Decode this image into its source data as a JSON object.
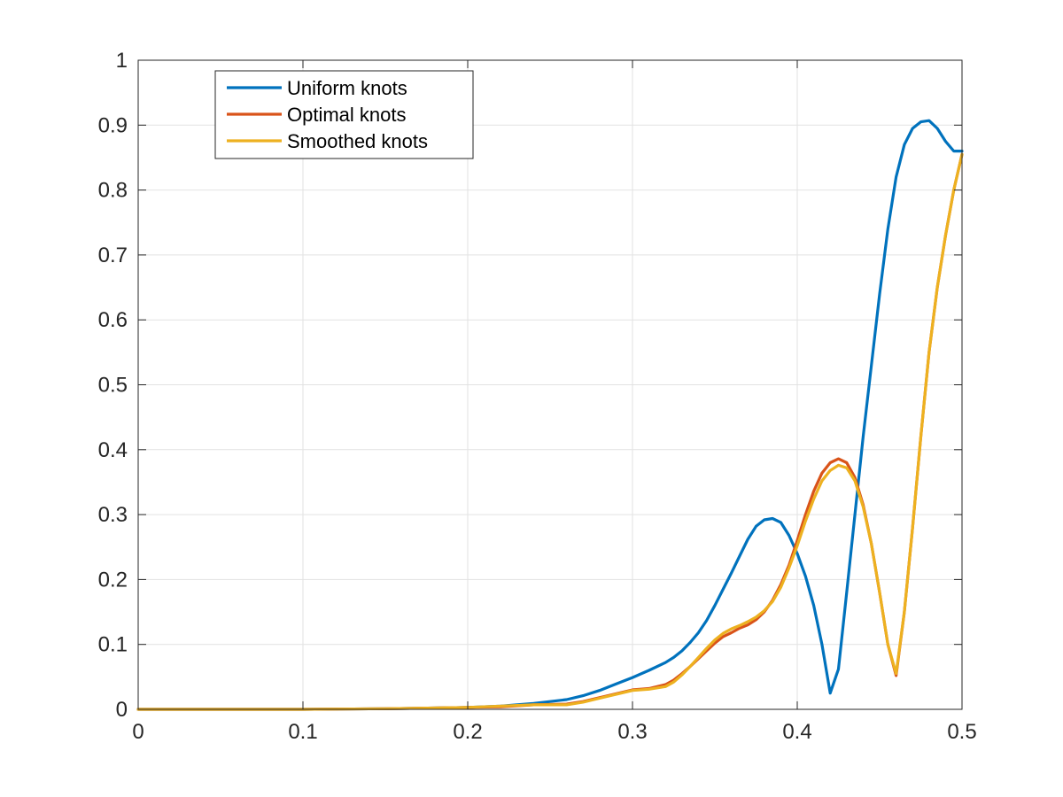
{
  "chart_data": {
    "type": "line",
    "title": "",
    "xlabel": "",
    "ylabel": "",
    "xlim": [
      0,
      0.5
    ],
    "ylim": [
      0,
      1
    ],
    "grid": true,
    "legend_position": "top-left",
    "x_ticks": [
      "0",
      "0.1",
      "0.2",
      "0.3",
      "0.4",
      "0.5"
    ],
    "y_ticks": [
      "0",
      "0.1",
      "0.2",
      "0.3",
      "0.4",
      "0.5",
      "0.6",
      "0.7",
      "0.8",
      "0.9",
      "1"
    ],
    "x": [
      0,
      0.05,
      0.1,
      0.15,
      0.18,
      0.2,
      0.22,
      0.24,
      0.26,
      0.27,
      0.28,
      0.29,
      0.3,
      0.31,
      0.32,
      0.325,
      0.33,
      0.335,
      0.34,
      0.345,
      0.35,
      0.355,
      0.36,
      0.365,
      0.37,
      0.375,
      0.38,
      0.385,
      0.39,
      0.395,
      0.4,
      0.405,
      0.41,
      0.415,
      0.42,
      0.425,
      0.43,
      0.435,
      0.44,
      0.445,
      0.45,
      0.455,
      0.46,
      0.465,
      0.47,
      0.475,
      0.48,
      0.485,
      0.49,
      0.495,
      0.5
    ],
    "series": [
      {
        "name": "Uniform knots",
        "color": "#0072BD",
        "values": [
          0,
          0,
          0,
          0.001,
          0.002,
          0.003,
          0.005,
          0.009,
          0.015,
          0.021,
          0.029,
          0.039,
          0.049,
          0.06,
          0.072,
          0.08,
          0.09,
          0.103,
          0.118,
          0.137,
          0.16,
          0.185,
          0.21,
          0.236,
          0.262,
          0.282,
          0.292,
          0.294,
          0.288,
          0.268,
          0.24,
          0.205,
          0.16,
          0.1,
          0.025,
          0.062,
          0.18,
          0.3,
          0.42,
          0.53,
          0.64,
          0.74,
          0.82,
          0.87,
          0.895,
          0.905,
          0.907,
          0.895,
          0.875,
          0.86,
          0.86
        ]
      },
      {
        "name": "Optimal knots",
        "color": "#D95319",
        "values": [
          0,
          0,
          0,
          0.001,
          0.002,
          0.003,
          0.004,
          0.007,
          0.008,
          0.012,
          0.018,
          0.024,
          0.03,
          0.032,
          0.038,
          0.045,
          0.055,
          0.066,
          0.078,
          0.09,
          0.102,
          0.112,
          0.118,
          0.125,
          0.13,
          0.138,
          0.15,
          0.168,
          0.192,
          0.222,
          0.26,
          0.3,
          0.336,
          0.364,
          0.38,
          0.386,
          0.38,
          0.357,
          0.315,
          0.255,
          0.18,
          0.1,
          0.052,
          0.15,
          0.28,
          0.42,
          0.55,
          0.65,
          0.73,
          0.8,
          0.855
        ]
      },
      {
        "name": "Smoothed knots",
        "color": "#EDB120",
        "values": [
          0,
          0,
          0,
          0.001,
          0.002,
          0.003,
          0.005,
          0.007,
          0.007,
          0.011,
          0.017,
          0.023,
          0.029,
          0.031,
          0.035,
          0.042,
          0.053,
          0.066,
          0.08,
          0.094,
          0.107,
          0.117,
          0.124,
          0.129,
          0.135,
          0.142,
          0.152,
          0.166,
          0.188,
          0.218,
          0.252,
          0.29,
          0.324,
          0.352,
          0.368,
          0.376,
          0.372,
          0.352,
          0.312,
          0.255,
          0.18,
          0.1,
          0.055,
          0.15,
          0.28,
          0.42,
          0.55,
          0.65,
          0.73,
          0.8,
          0.855
        ]
      }
    ]
  }
}
